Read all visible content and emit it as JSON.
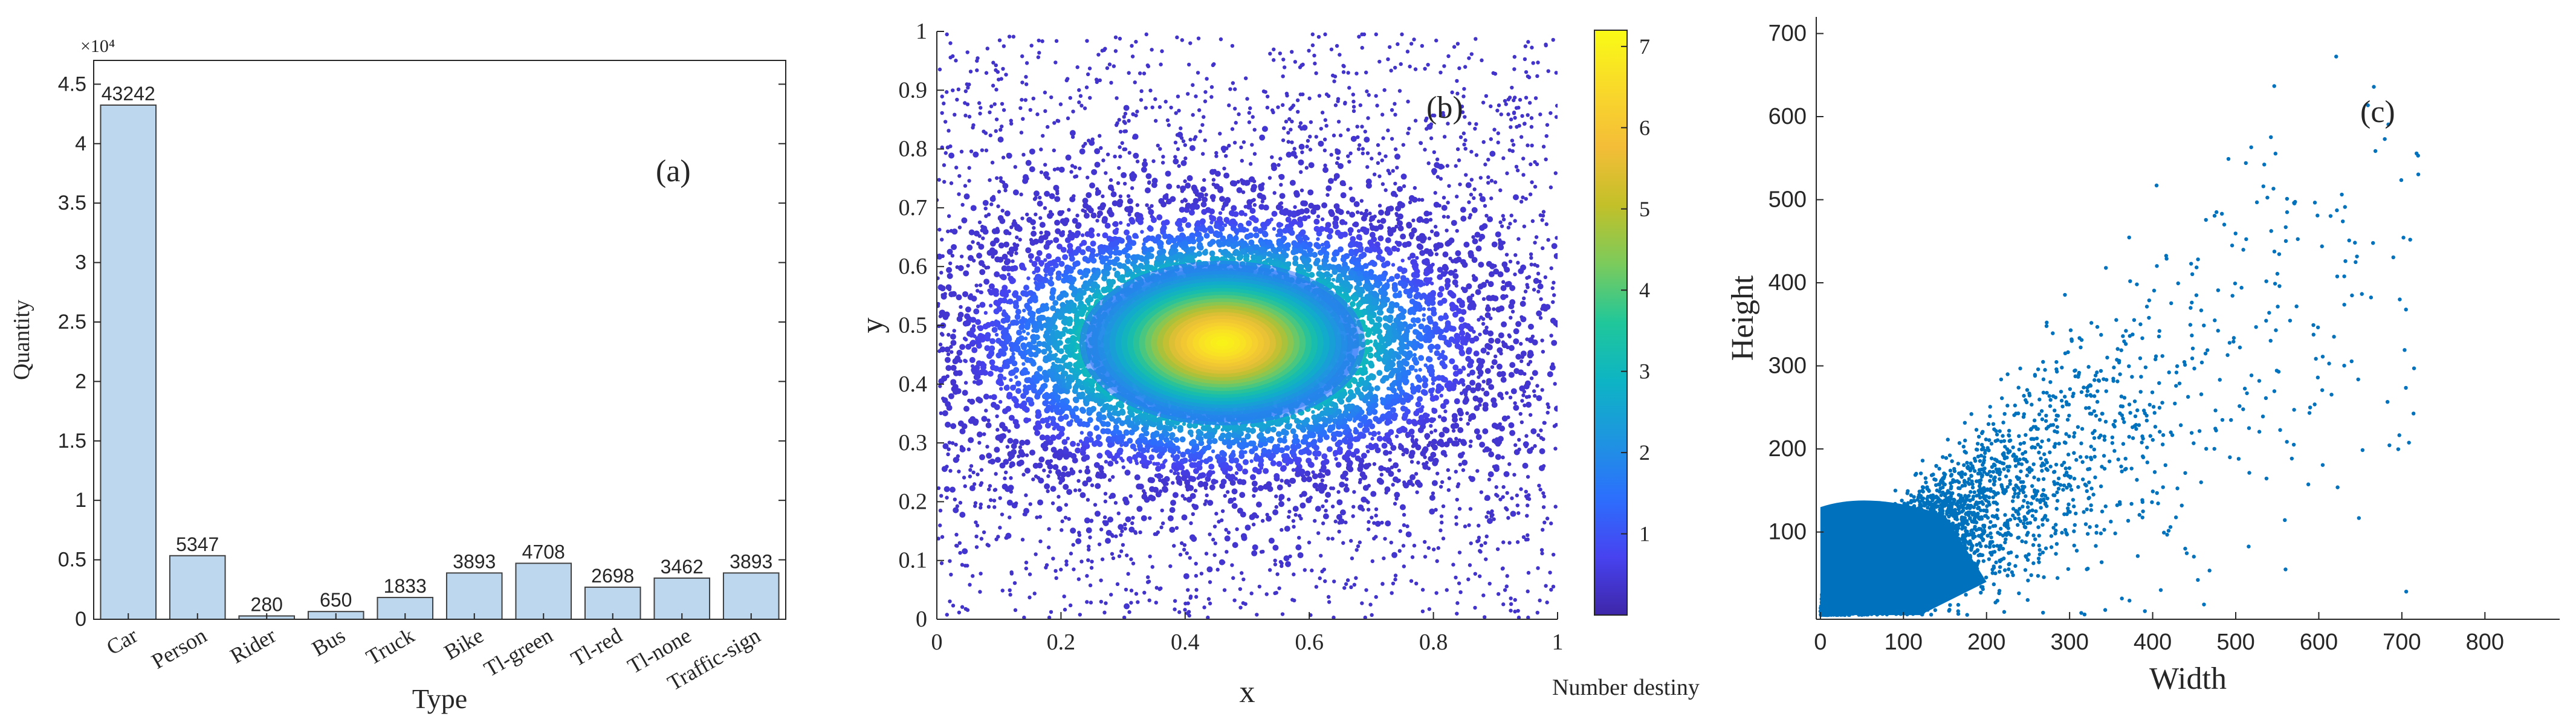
{
  "chart_data": [
    {
      "panel": "(a)",
      "type": "bar",
      "title": "",
      "xlabel": "Type",
      "ylabel": "Quantity",
      "scale_label": "×10⁴",
      "categories": [
        "Car",
        "Person",
        "Rider",
        "Bus",
        "Truck",
        "Bike",
        "Tl-green",
        "Tl-red",
        "Tl-none",
        "Traffic-sign"
      ],
      "values": [
        43242,
        5347,
        280,
        650,
        1833,
        3893,
        4708,
        2698,
        3462,
        3893
      ],
      "data_labels": [
        "43242",
        "5347",
        "280",
        "650",
        "1833",
        "3893",
        "4708",
        "2698",
        "3462",
        "3893"
      ],
      "ylim": [
        0,
        47000
      ],
      "yticks": [
        0,
        0.5,
        1,
        1.5,
        2,
        2.5,
        3,
        3.5,
        4,
        4.5
      ],
      "ytick_labels": [
        "0",
        "0.5",
        "1",
        "1.5",
        "2",
        "2.5",
        "3",
        "3.5",
        "4",
        "4.5"
      ],
      "bar_color": "#bdd7ee",
      "edge_color": "#404040",
      "grid": false
    },
    {
      "panel": "(b)",
      "type": "scatter",
      "title": "",
      "xlabel": "x",
      "ylabel": "y",
      "xlim": [
        0,
        1
      ],
      "ylim": [
        0,
        1
      ],
      "xticks": [
        0,
        0.2,
        0.4,
        0.6,
        0.8,
        1
      ],
      "xtick_labels": [
        "0",
        "0.2",
        "0.4",
        "0.6",
        "0.8",
        "1"
      ],
      "yticks": [
        0,
        0.1,
        0.2,
        0.3,
        0.4,
        0.5,
        0.6,
        0.7,
        0.8,
        0.9,
        1
      ],
      "ytick_labels": [
        "0",
        "0.1",
        "0.2",
        "0.3",
        "0.4",
        "0.5",
        "0.6",
        "0.7",
        "0.8",
        "0.9",
        "1"
      ],
      "density_peak": {
        "x": 0.46,
        "y": 0.47,
        "value": 7.1
      },
      "colorbar": {
        "label": "Number destiny",
        "range": [
          0,
          7.2
        ],
        "ticks": [
          1,
          2,
          3,
          4,
          5,
          6,
          7
        ],
        "tick_labels": [
          "1",
          "2",
          "3",
          "4",
          "5",
          "6",
          "7"
        ],
        "colormap": [
          "#3e26a8",
          "#4743f0",
          "#2c6ffd",
          "#1e95e0",
          "#0db4c4",
          "#20c79a",
          "#7bcb5c",
          "#c2c029",
          "#f4bd38",
          "#f9d92a",
          "#f9fb15"
        ]
      },
      "grid": false
    },
    {
      "panel": "(c)",
      "type": "scatter",
      "title": "",
      "xlabel": "Width",
      "ylabel": "Height",
      "xlim": [
        -5,
        890
      ],
      "ylim": [
        -5,
        720
      ],
      "xticks": [
        0,
        100,
        200,
        300,
        400,
        500,
        600,
        700,
        800
      ],
      "xtick_labels": [
        "0",
        "100",
        "200",
        "300",
        "400",
        "500",
        "600",
        "700",
        "800"
      ],
      "yticks": [
        100,
        200,
        300,
        400,
        500,
        600,
        700
      ],
      "ytick_labels": [
        "100",
        "200",
        "300",
        "400",
        "500",
        "600",
        "700"
      ],
      "point_color": "#0072bd",
      "trend": {
        "slope": 0.62,
        "intercept": 5
      },
      "grid": false
    }
  ]
}
